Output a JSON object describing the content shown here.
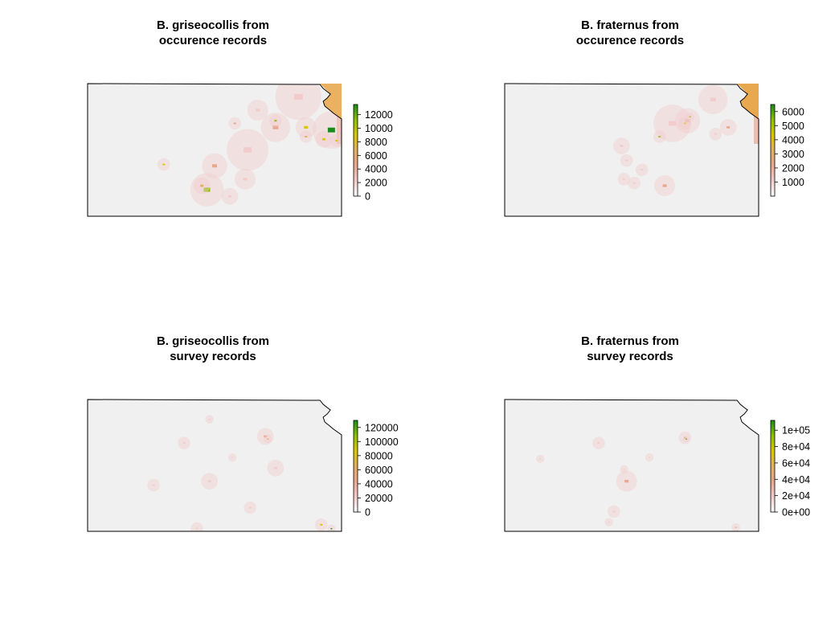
{
  "colors": {
    "background": "#f0f0f0",
    "border": "#000000",
    "ramp": [
      "#ffffff",
      "#f2cccc",
      "#e8a890",
      "#e3b060",
      "#d9c800",
      "#8cc000",
      "#1a8c1a"
    ],
    "state_outside": "#e8a850"
  },
  "panels": [
    {
      "title_line1": "B. griseocollis from",
      "title_line2": "occurence records",
      "legend_labels": [
        "12000",
        "10000",
        "8000",
        "6000",
        "4000",
        "2000",
        "0"
      ],
      "legend_values": [
        12000,
        10000,
        8000,
        6000,
        4000,
        2000,
        0
      ],
      "legend_range": [
        0,
        13500
      ]
    },
    {
      "title_line1": "B. fraternus from",
      "title_line2": "occurence records",
      "legend_labels": [
        "6000",
        "5000",
        "4000",
        "3000",
        "2000",
        "1000"
      ],
      "legend_values": [
        6000,
        5000,
        4000,
        3000,
        2000,
        1000
      ],
      "legend_range": [
        0,
        6500
      ]
    },
    {
      "title_line1": "B. griseocollis from",
      "title_line2": "survey records",
      "legend_labels": [
        "120000",
        "100000",
        "80000",
        "60000",
        "40000",
        "20000",
        "0"
      ],
      "legend_values": [
        120000,
        100000,
        80000,
        60000,
        40000,
        20000,
        0
      ],
      "legend_range": [
        0,
        130000
      ]
    },
    {
      "title_line1": "B. fraternus from",
      "title_line2": "survey records",
      "legend_labels": [
        "1e+05",
        "8e+04",
        "6e+04",
        "4e+04",
        "2e+04",
        "0e+00"
      ],
      "legend_values": [
        100000,
        80000,
        60000,
        40000,
        20000,
        0
      ],
      "legend_range": [
        0,
        112000
      ]
    }
  ]
}
